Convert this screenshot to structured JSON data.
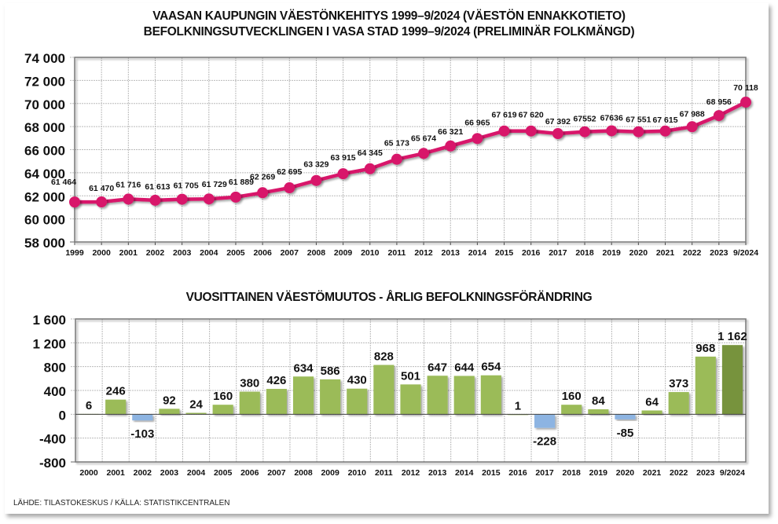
{
  "titles": {
    "top_line1": "VAASAN KAUPUNGIN VÄESTÖNKEHITYS 1999–9/2024 (VÄESTÖN ENNAKKOTIETO)",
    "top_line2": "BEFOLKNINGSUTVECKLINGEN I VASA STAD 1999–9/2024 (PRELIMINÄR FOLKMÄNGD)",
    "bottom": "VUOSITTAINEN VÄESTÖMUUTOS - ÅRLIG BEFOLKNINGSFÖRÄNDRING"
  },
  "source": "LÄHDE: TILASTOKESKUS / KÄLLA: STATISTIKCENTRALEN",
  "colors": {
    "line": "#D8146A",
    "bar_positive": "#9BBB59",
    "bar_negative": "#8DB4E2",
    "bar_latest": "#77933C",
    "grid": "#BBBBBB"
  },
  "chart_data": [
    {
      "type": "line",
      "title": "VAASAN KAUPUNGIN VÄESTÖNKEHITYS 1999–9/2024 (VÄESTÖN ENNAKKOTIETO) / BEFOLKNINGSUTVECKLINGEN I VASA STAD 1999–9/2024 (PRELIMINÄR FOLKMÄNGD)",
      "xlabel": "",
      "ylabel": "",
      "categories": [
        "1999",
        "2000",
        "2001",
        "2002",
        "2003",
        "2004",
        "2005",
        "2006",
        "2007",
        "2008",
        "2009",
        "2010",
        "2011",
        "2012",
        "2013",
        "2014",
        "2015",
        "2016",
        "2017",
        "2018",
        "2019",
        "2020",
        "2021",
        "2022",
        "2023",
        "9/2024"
      ],
      "values": [
        61464,
        61470,
        61716,
        61613,
        61705,
        61729,
        61889,
        62269,
        62695,
        63329,
        63915,
        64345,
        65173,
        65674,
        66321,
        66965,
        67619,
        67620,
        67392,
        67552,
        67636,
        67551,
        67615,
        67988,
        68956,
        70118
      ],
      "labels": [
        "61 464",
        "61 470",
        "61 716",
        "61 613",
        "61 705",
        "61 729",
        "61 889",
        "62 269",
        "62 695",
        "63 329",
        "63 915",
        "64 345",
        "65 173",
        "65 674",
        "66 321",
        "66 965",
        "67 619",
        "67 620",
        "67 392",
        "67552",
        "67636",
        "67 551",
        "67 615",
        "67 988",
        "68 956",
        "70 118"
      ],
      "ylim": [
        58000,
        74000
      ],
      "yticks": [
        58000,
        60000,
        62000,
        64000,
        66000,
        68000,
        70000,
        72000,
        74000
      ],
      "ytick_labels": [
        "58 000",
        "60 000",
        "62 000",
        "64 000",
        "66 000",
        "68 000",
        "70 000",
        "72 000",
        "74 000"
      ],
      "grid": true,
      "legend": "none"
    },
    {
      "type": "bar",
      "title": "VUOSITTAINEN VÄESTÖMUUTOS - ÅRLIG BEFOLKNINGSFÖRÄNDRING",
      "xlabel": "",
      "ylabel": "",
      "categories": [
        "2000",
        "2001",
        "2002",
        "2003",
        "2004",
        "2005",
        "2006",
        "2007",
        "2008",
        "2009",
        "2010",
        "2011",
        "2012",
        "2013",
        "2014",
        "2015",
        "2016",
        "2017",
        "2018",
        "2019",
        "2020",
        "2021",
        "2022",
        "2023",
        "9/2024"
      ],
      "values": [
        6,
        246,
        -103,
        92,
        24,
        160,
        380,
        426,
        634,
        586,
        430,
        828,
        501,
        647,
        644,
        654,
        1,
        -228,
        160,
        84,
        -85,
        64,
        373,
        968,
        1162
      ],
      "labels": [
        "6",
        "246",
        "-103",
        "92",
        "24",
        "160",
        "380",
        "426",
        "634",
        "586",
        "430",
        "828",
        "501",
        "647",
        "644",
        "654",
        "1",
        "-228",
        "160",
        "84",
        "-85",
        "64",
        "373",
        "968",
        "1 162"
      ],
      "ylim": [
        -800,
        1600
      ],
      "yticks": [
        -800,
        -400,
        0,
        400,
        800,
        1200,
        1600
      ],
      "ytick_labels": [
        "-800",
        "-400",
        "0",
        "400",
        "800",
        "1 200",
        "1 600"
      ],
      "grid": true,
      "legend": "none"
    }
  ]
}
